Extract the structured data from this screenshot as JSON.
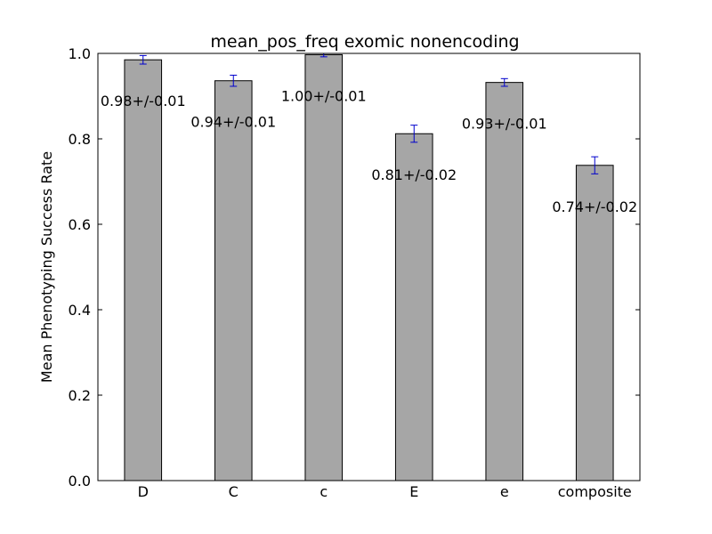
{
  "chart_data": {
    "type": "bar",
    "title": "mean_pos_freq exomic nonencoding",
    "xlabel": "",
    "ylabel": "Mean Phenotyping Success Rate",
    "categories": [
      "D",
      "C",
      "c",
      "E",
      "e",
      "composite"
    ],
    "values": [
      0.985,
      0.936,
      0.997,
      0.812,
      0.932,
      0.738
    ],
    "errors": [
      0.01,
      0.013,
      0.005,
      0.02,
      0.009,
      0.02
    ],
    "data_labels": [
      "0.98+/-0.01",
      "0.94+/-0.01",
      "1.00+/-0.01",
      "0.81+/-0.02",
      "0.93+/-0.01",
      "0.74+/-0.02"
    ],
    "ylim": [
      0,
      1.0
    ],
    "yticks": [
      0.0,
      0.2,
      0.4,
      0.6,
      0.8,
      1.0
    ],
    "ytick_labels": [
      "0.0",
      "0.2",
      "0.4",
      "0.6",
      "0.8",
      "1.0"
    ],
    "grid": false,
    "legend": "none",
    "colors": {
      "bar": "#a6a6a6",
      "error": "#0000cc",
      "frame": "#000000"
    }
  }
}
